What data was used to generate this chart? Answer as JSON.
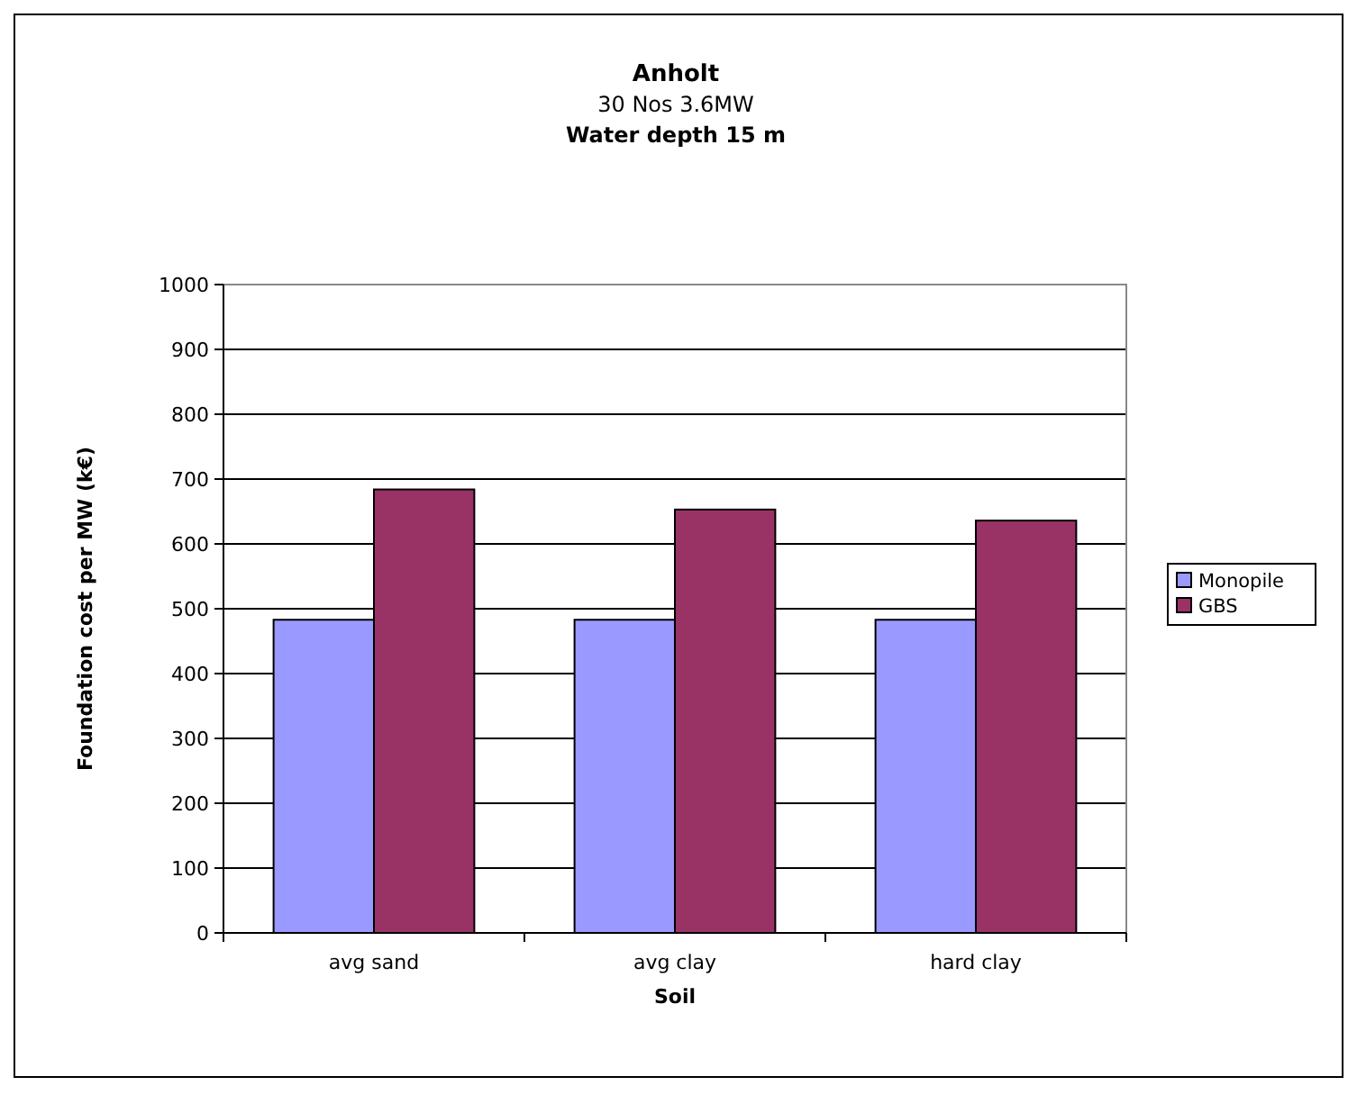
{
  "chart_data": {
    "type": "bar",
    "title": "Anholt",
    "subtitle": "30 Nos 3.6MW",
    "annotations": [
      "Water depth 15 m"
    ],
    "xlabel": "Soil",
    "ylabel": "Foundation cost per MW (k€)",
    "categories": [
      "avg sand",
      "avg clay",
      "hard clay"
    ],
    "series": [
      {
        "name": "Monopile",
        "color": "#9999ff",
        "values": [
          483,
          483,
          483
        ]
      },
      {
        "name": "GBS",
        "color": "#993366",
        "values": [
          684,
          653,
          636
        ]
      }
    ],
    "ylim": [
      0,
      1000
    ],
    "yticks": [
      0,
      100,
      200,
      300,
      400,
      500,
      600,
      700,
      800,
      900,
      1000
    ],
    "grid": "y",
    "legend": "right"
  }
}
